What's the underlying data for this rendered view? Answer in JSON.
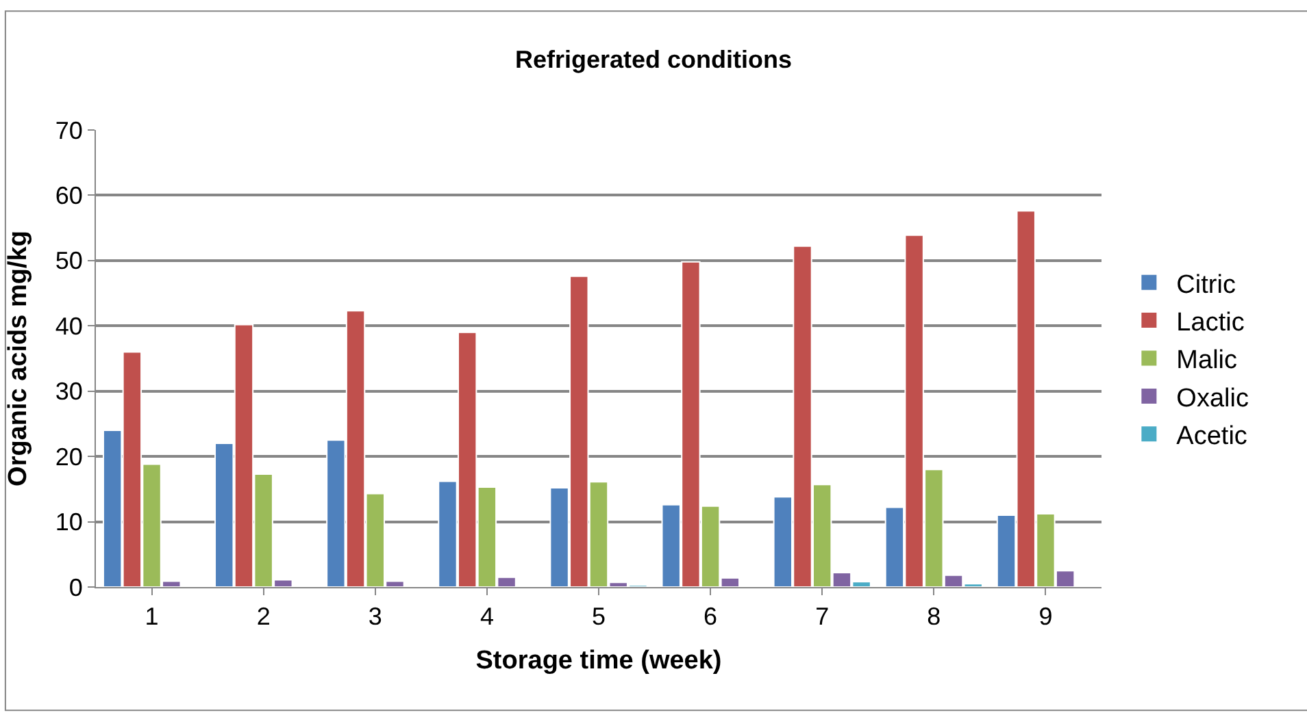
{
  "chart_data": {
    "type": "bar",
    "title": "Refrigerated conditions",
    "xlabel": "Storage time (week)",
    "ylabel": "Organic acids mg/kg",
    "categories": [
      "1",
      "2",
      "3",
      "4",
      "5",
      "6",
      "7",
      "8",
      "9"
    ],
    "series": [
      {
        "name": "Citric",
        "color": "#4f81bd",
        "values": [
          24,
          22,
          22.5,
          16.2,
          15.2,
          12.6,
          13.8,
          12.2,
          11
        ]
      },
      {
        "name": "Lactic",
        "color": "#c0504d",
        "values": [
          36,
          40.2,
          42.3,
          39,
          47.6,
          49.8,
          52.2,
          53.9,
          57.6
        ]
      },
      {
        "name": "Malic",
        "color": "#9bbb59",
        "values": [
          18.8,
          17.3,
          14.3,
          15.3,
          16.1,
          12.4,
          15.7,
          18,
          11.2
        ]
      },
      {
        "name": "Oxalic",
        "color": "#8064a2",
        "values": [
          0.9,
          1.1,
          0.9,
          1.5,
          0.7,
          1.4,
          2.2,
          1.8,
          2.5
        ]
      },
      {
        "name": "Acetic",
        "color": "#4bacc6",
        "values": [
          0.1,
          0.1,
          0.1,
          0.1,
          0.3,
          0.1,
          0.8,
          0.5,
          0.1
        ]
      }
    ],
    "ylim": [
      0,
      70
    ],
    "yticks": [
      0,
      10,
      20,
      30,
      40,
      50,
      60,
      70
    ],
    "grid": "y",
    "legend": "right"
  }
}
